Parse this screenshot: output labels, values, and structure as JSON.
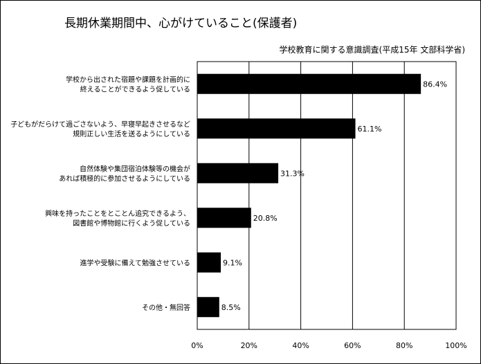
{
  "chart_data": {
    "type": "bar",
    "orientation": "horizontal",
    "title": "長期休業期間中、心がけていること(保護者)",
    "subtitle": "学校教育に関する意識調査(平成15年 文部科学省)",
    "categories": [
      [
        "学校から出された宿題や課題を計画的に",
        "終えることができるよう促している"
      ],
      [
        "子どもがだらけて過ごさないよう、早寝早起きさせるなど",
        "規則正しい生活を送るようにしている"
      ],
      [
        "自然体験や集団宿泊体験等の機会が",
        "あれば積極的に参加させるようにしている"
      ],
      [
        "興味を持ったことをとことん追究できるよう、",
        "図書館や博物館に行くよう促している"
      ],
      [
        "進学や受験に備えて勉強させている"
      ],
      [
        "その他・無回答"
      ]
    ],
    "values": [
      86.4,
      61.1,
      31.3,
      20.8,
      9.1,
      8.5
    ],
    "value_labels": [
      "86.4%",
      "61.1%",
      "31.3%",
      "20.8%",
      "9.1%",
      "8.5%"
    ],
    "xlim": [
      0,
      100
    ],
    "x_ticks": [
      "0%",
      "20%",
      "40%",
      "60%",
      "80%",
      "100%"
    ],
    "x_tick_values": [
      0,
      20,
      40,
      60,
      80,
      100
    ],
    "grid": true,
    "bar_color": "#000000"
  }
}
